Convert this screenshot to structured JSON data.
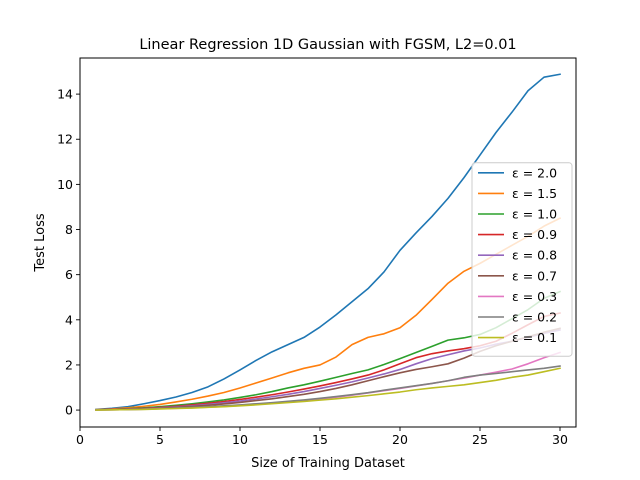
{
  "chart_data": {
    "type": "line",
    "title": "Linear Regression 1D Gaussian with FGSM, L2=0.01",
    "xlabel": "Size of Training Dataset",
    "ylabel": "Test Loss",
    "xlim": [
      0,
      31
    ],
    "ylim": [
      -0.75,
      15.6
    ],
    "xticks": [
      0,
      5,
      10,
      15,
      20,
      25,
      30
    ],
    "yticks": [
      0,
      2,
      4,
      6,
      8,
      10,
      12,
      14
    ],
    "grid": false,
    "legend_position": "center-right",
    "x": [
      1,
      2,
      3,
      4,
      5,
      6,
      7,
      8,
      9,
      10,
      11,
      12,
      13,
      14,
      15,
      16,
      17,
      18,
      19,
      20,
      21,
      22,
      23,
      24,
      25,
      26,
      27,
      28,
      29,
      30
    ],
    "series": [
      {
        "name": "ε = 2.0",
        "color": "#1f77b4",
        "values": [
          0.03,
          0.08,
          0.15,
          0.28,
          0.42,
          0.58,
          0.78,
          1.03,
          1.38,
          1.78,
          2.2,
          2.58,
          2.9,
          3.22,
          3.68,
          4.22,
          4.8,
          5.38,
          6.12,
          7.08,
          7.85,
          8.58,
          9.38,
          10.3,
          11.3,
          12.3,
          13.2,
          14.15,
          14.75,
          14.88
        ]
      },
      {
        "name": "ε = 1.5",
        "color": "#ff7f0e",
        "values": [
          0.02,
          0.05,
          0.1,
          0.17,
          0.25,
          0.36,
          0.48,
          0.62,
          0.78,
          0.98,
          1.2,
          1.42,
          1.65,
          1.85,
          2.0,
          2.35,
          2.9,
          3.22,
          3.38,
          3.65,
          4.2,
          4.9,
          5.62,
          6.15,
          6.5,
          6.9,
          7.3,
          7.7,
          8.15,
          8.5
        ]
      },
      {
        "name": "ε = 1.0",
        "color": "#2ca02c",
        "values": [
          0.01,
          0.03,
          0.06,
          0.1,
          0.15,
          0.21,
          0.28,
          0.36,
          0.45,
          0.56,
          0.68,
          0.82,
          0.98,
          1.12,
          1.28,
          1.45,
          1.62,
          1.78,
          2.02,
          2.28,
          2.55,
          2.82,
          3.1,
          3.2,
          3.35,
          3.65,
          4.05,
          4.45,
          4.95,
          5.25
        ]
      },
      {
        "name": "ε = 0.9",
        "color": "#d62728",
        "values": [
          0.01,
          0.03,
          0.05,
          0.08,
          0.12,
          0.17,
          0.23,
          0.3,
          0.38,
          0.47,
          0.57,
          0.68,
          0.8,
          0.93,
          1.07,
          1.22,
          1.38,
          1.55,
          1.78,
          2.05,
          2.32,
          2.5,
          2.62,
          2.72,
          2.85,
          3.05,
          3.4,
          3.78,
          4.15,
          4.3
        ]
      },
      {
        "name": "ε = 0.8",
        "color": "#9467bd",
        "values": [
          0.01,
          0.02,
          0.04,
          0.07,
          0.1,
          0.14,
          0.19,
          0.25,
          0.32,
          0.4,
          0.49,
          0.59,
          0.7,
          0.82,
          0.96,
          1.1,
          1.25,
          1.42,
          1.6,
          1.8,
          2.05,
          2.28,
          2.45,
          2.62,
          2.75,
          2.92,
          3.05,
          3.22,
          3.4,
          3.55
        ]
      },
      {
        "name": "ε = 0.7",
        "color": "#8c564b",
        "values": [
          0.01,
          0.02,
          0.04,
          0.06,
          0.09,
          0.12,
          0.16,
          0.21,
          0.27,
          0.34,
          0.42,
          0.5,
          0.6,
          0.7,
          0.82,
          0.96,
          1.12,
          1.3,
          1.48,
          1.65,
          1.8,
          1.92,
          2.05,
          2.3,
          2.6,
          2.85,
          3.05,
          3.25,
          3.45,
          3.62
        ]
      },
      {
        "name": "ε = 0.3",
        "color": "#e377c2",
        "values": [
          0.0,
          0.01,
          0.02,
          0.04,
          0.06,
          0.08,
          0.1,
          0.13,
          0.16,
          0.2,
          0.25,
          0.3,
          0.36,
          0.42,
          0.49,
          0.57,
          0.66,
          0.76,
          0.86,
          0.96,
          1.07,
          1.18,
          1.3,
          1.42,
          1.55,
          1.68,
          1.82,
          2.05,
          2.32,
          2.55
        ]
      },
      {
        "name": "ε = 0.2",
        "color": "#7f7f7f",
        "values": [
          0.0,
          0.01,
          0.02,
          0.04,
          0.06,
          0.09,
          0.12,
          0.15,
          0.19,
          0.23,
          0.28,
          0.33,
          0.39,
          0.45,
          0.52,
          0.6,
          0.68,
          0.77,
          0.88,
          0.98,
          1.08,
          1.18,
          1.3,
          1.45,
          1.55,
          1.62,
          1.7,
          1.78,
          1.85,
          1.95
        ]
      },
      {
        "name": "ε = 0.1",
        "color": "#bcbd22",
        "values": [
          0.0,
          0.01,
          0.02,
          0.03,
          0.05,
          0.07,
          0.09,
          0.12,
          0.15,
          0.19,
          0.23,
          0.28,
          0.33,
          0.38,
          0.44,
          0.5,
          0.57,
          0.64,
          0.72,
          0.8,
          0.9,
          0.98,
          1.05,
          1.12,
          1.22,
          1.32,
          1.45,
          1.55,
          1.7,
          1.85
        ]
      }
    ]
  }
}
